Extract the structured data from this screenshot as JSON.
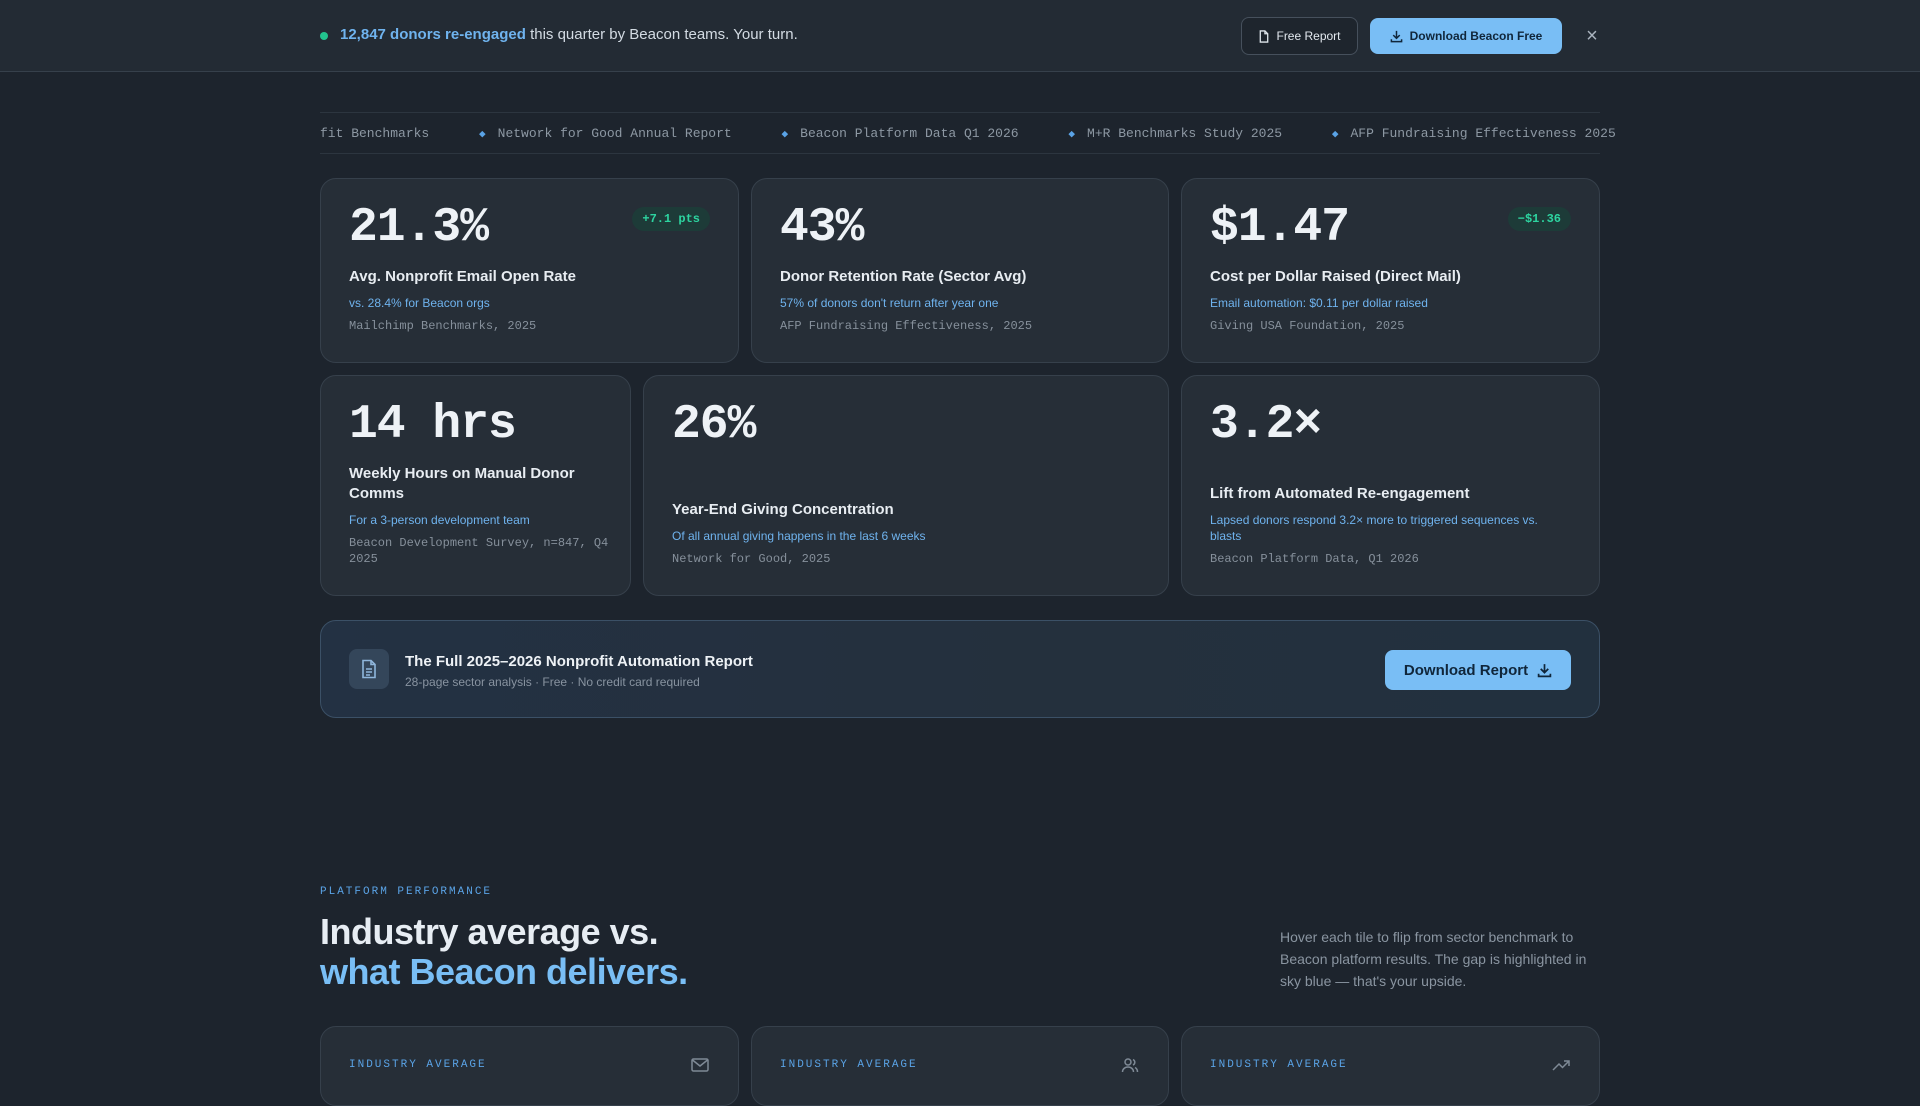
{
  "topbar": {
    "highlight": "12,847 donors re-engaged",
    "text": " this quarter by Beacon teams. Your turn.",
    "free_report_label": "Free Report",
    "download_label": "Download Beacon Free",
    "close_icon": "×"
  },
  "ticker": {
    "items": [
      "fit Benchmarks",
      "Network for Good Annual Report",
      "Beacon Platform Data Q1 2026",
      "M+R Benchmarks Study 2025",
      "AFP Fundraising Effectiveness 2025"
    ]
  },
  "stats": [
    {
      "value": "21.3%",
      "badge": "+7.1 pts",
      "title": "Avg. Nonprofit Email Open Rate",
      "sub": "vs. 28.4% for Beacon orgs",
      "source": "Mailchimp Benchmarks, 2025"
    },
    {
      "value": "43%",
      "title": "Donor Retention Rate (Sector Avg)",
      "sub": "57% of donors don't return after year one",
      "source": "AFP Fundraising Effectiveness, 2025"
    },
    {
      "value": "$1.47",
      "badge": "−$1.36",
      "title": "Cost per Dollar Raised (Direct Mail)",
      "sub": "Email automation: $0.11 per dollar raised",
      "source": "Giving USA Foundation, 2025"
    },
    {
      "value": "14 hrs",
      "title": "Weekly Hours on Manual Donor Comms",
      "sub": "For a 3-person development team",
      "source": "Beacon Development Survey, n=847, Q4 2025"
    },
    {
      "value": "26%",
      "title": "Year-End Giving Concentration",
      "sub": "Of all annual giving happens in the last 6 weeks",
      "source": "Network for Good, 2025"
    },
    {
      "value": "3.2×",
      "title": "Lift from Automated Re-engagement",
      "sub": "Lapsed donors respond 3.2× more to triggered sequences vs. blasts",
      "source": "Beacon Platform Data, Q1 2026"
    }
  ],
  "report": {
    "title": "The Full 2025–2026 Nonprofit Automation Report",
    "sub": "28-page sector analysis · Free · No credit card required",
    "button": "Download Report"
  },
  "performance": {
    "eyebrow": "PLATFORM PERFORMANCE",
    "heading_line1": "Industry average vs.",
    "heading_line2": "what Beacon delivers.",
    "description": "Hover each tile to flip from sector benchmark to Beacon platform results. The gap is highlighted in sky blue — that's your upside.",
    "tiles": [
      {
        "label": "INDUSTRY AVERAGE",
        "icon": "mail-icon"
      },
      {
        "label": "INDUSTRY AVERAGE",
        "icon": "users-icon"
      },
      {
        "label": "INDUSTRY AVERAGE",
        "icon": "trending-up-icon"
      }
    ]
  },
  "colors": {
    "background": "#1d242d",
    "card": "#262e37",
    "accent": "#79bef5",
    "positive": "#2dd4a0"
  }
}
